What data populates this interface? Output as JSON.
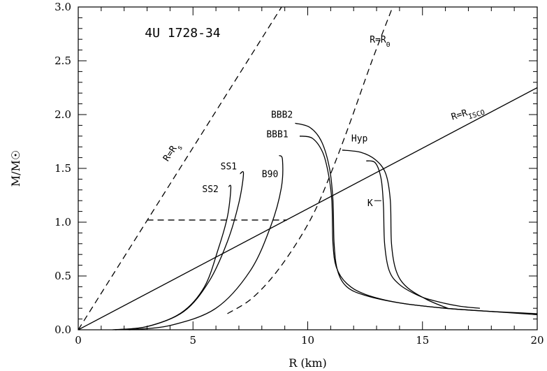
{
  "chart_data": {
    "type": "line",
    "title": "4U 1728-34",
    "xlabel": "R (km)",
    "ylabel": "M/M☉",
    "xlim": [
      0,
      20
    ],
    "ylim": [
      0,
      3.0
    ],
    "x_ticks": [
      0,
      5,
      10,
      15,
      20
    ],
    "y_ticks": [
      0.0,
      0.5,
      1.0,
      1.5,
      2.0,
      2.5,
      3.0
    ],
    "x_tick_labels": [
      "0",
      "5",
      "10",
      "15",
      "20"
    ],
    "y_tick_labels": [
      "0.0",
      "0.5",
      "1.0",
      "1.5",
      "2.0",
      "2.5",
      "3.0"
    ],
    "grid": false,
    "series": [
      {
        "name": "R=Rs",
        "style": "dashed",
        "points": [
          [
            0,
            0
          ],
          [
            8.86,
            3.0
          ]
        ]
      },
      {
        "name": "R=R0",
        "style": "dashed",
        "points": [
          [
            6.5,
            0.15
          ],
          [
            7.5,
            0.28
          ],
          [
            8.5,
            0.5
          ],
          [
            9.5,
            0.8
          ],
          [
            10.3,
            1.1
          ],
          [
            11.0,
            1.45
          ],
          [
            11.8,
            1.9
          ],
          [
            12.8,
            2.5
          ],
          [
            13.7,
            3.0
          ]
        ]
      },
      {
        "name": "R=RISCO",
        "style": "solid",
        "points": [
          [
            0,
            0
          ],
          [
            20,
            2.25
          ]
        ]
      },
      {
        "name": "",
        "style": "dashed",
        "points": [
          [
            3.0,
            1.02
          ],
          [
            9.1,
            1.02
          ]
        ]
      },
      {
        "name": "SS2",
        "style": "solid",
        "points": [
          [
            1.5,
            0.0
          ],
          [
            3.0,
            0.03
          ],
          [
            4.5,
            0.16
          ],
          [
            5.5,
            0.4
          ],
          [
            6.1,
            0.75
          ],
          [
            6.5,
            1.05
          ],
          [
            6.65,
            1.32
          ],
          [
            6.55,
            1.33
          ]
        ]
      },
      {
        "name": "SS1",
        "style": "solid",
        "points": [
          [
            1.6,
            0.0
          ],
          [
            3.0,
            0.03
          ],
          [
            4.6,
            0.17
          ],
          [
            5.7,
            0.45
          ],
          [
            6.5,
            0.82
          ],
          [
            7.0,
            1.18
          ],
          [
            7.2,
            1.45
          ],
          [
            7.05,
            1.45
          ]
        ]
      },
      {
        "name": "B90",
        "style": "solid",
        "points": [
          [
            2.2,
            0.0
          ],
          [
            4.0,
            0.04
          ],
          [
            6.0,
            0.2
          ],
          [
            7.5,
            0.55
          ],
          [
            8.4,
            0.97
          ],
          [
            8.85,
            1.32
          ],
          [
            8.9,
            1.58
          ],
          [
            8.75,
            1.62
          ]
        ]
      },
      {
        "name": "BBB2",
        "style": "solid",
        "points": [
          [
            9.45,
            1.92
          ],
          [
            10.1,
            1.88
          ],
          [
            10.6,
            1.75
          ],
          [
            10.95,
            1.5
          ],
          [
            11.1,
            1.2
          ],
          [
            11.15,
            0.8
          ],
          [
            11.3,
            0.55
          ],
          [
            11.7,
            0.4
          ],
          [
            12.5,
            0.32
          ],
          [
            14,
            0.25
          ],
          [
            16,
            0.2
          ],
          [
            18,
            0.17
          ],
          [
            20,
            0.15
          ]
        ]
      },
      {
        "name": "BBB1",
        "style": "solid",
        "points": [
          [
            9.65,
            1.8
          ],
          [
            10.2,
            1.78
          ],
          [
            10.65,
            1.65
          ],
          [
            10.9,
            1.45
          ],
          [
            11.05,
            1.2
          ],
          [
            11.1,
            0.8
          ],
          [
            11.25,
            0.58
          ],
          [
            11.7,
            0.43
          ],
          [
            12.5,
            0.33
          ],
          [
            14,
            0.25
          ],
          [
            16,
            0.2
          ],
          [
            18,
            0.17
          ],
          [
            20,
            0.14
          ]
        ]
      },
      {
        "name": "Hyp",
        "style": "solid",
        "points": [
          [
            11.5,
            1.67
          ],
          [
            12.3,
            1.65
          ],
          [
            12.95,
            1.58
          ],
          [
            13.4,
            1.45
          ],
          [
            13.6,
            1.2
          ],
          [
            13.65,
            0.8
          ],
          [
            13.85,
            0.55
          ],
          [
            14.3,
            0.4
          ],
          [
            15.2,
            0.28
          ],
          [
            16.1,
            0.2
          ]
        ]
      },
      {
        "name": "K",
        "style": "solid",
        "points": [
          [
            12.55,
            1.57
          ],
          [
            12.95,
            1.55
          ],
          [
            13.2,
            1.4
          ],
          [
            13.3,
            1.15
          ],
          [
            13.35,
            0.8
          ],
          [
            13.55,
            0.55
          ],
          [
            14.0,
            0.42
          ],
          [
            14.8,
            0.32
          ],
          [
            15.5,
            0.27
          ],
          [
            16.6,
            0.22
          ],
          [
            17.5,
            0.2
          ]
        ]
      }
    ],
    "annotations": [
      {
        "text": "4U 1728-34",
        "x": 2.9,
        "y": 2.72
      },
      {
        "text": "R=R",
        "sub": "0",
        "x": 12.7,
        "y": 2.67
      },
      {
        "text": "R=R",
        "sub": "s",
        "x": 3.9,
        "y": 1.56
      },
      {
        "text": "R=R",
        "sub": "ISCO",
        "x": 16.3,
        "y": 1.95
      },
      {
        "text": "BBB2",
        "x": 8.4,
        "y": 1.97
      },
      {
        "text": "BBB1",
        "x": 8.2,
        "y": 1.79
      },
      {
        "text": "Hyp",
        "x": 11.9,
        "y": 1.75
      },
      {
        "text": "SS1",
        "x": 6.2,
        "y": 1.49
      },
      {
        "text": "SS2",
        "x": 5.4,
        "y": 1.28
      },
      {
        "text": "B90",
        "x": 8.0,
        "y": 1.42
      },
      {
        "text": "K",
        "x": 12.6,
        "y": 1.15
      }
    ]
  }
}
